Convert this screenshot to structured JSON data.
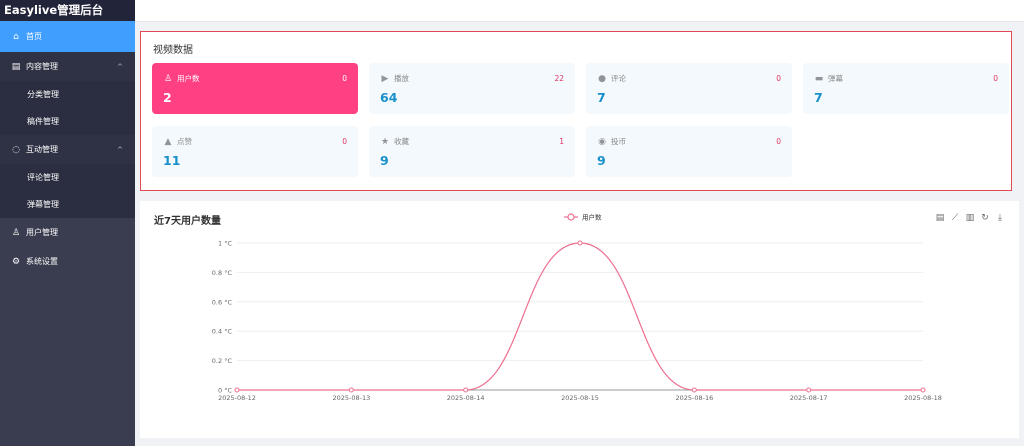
{
  "app": {
    "title": "Easylive管理后台"
  },
  "sidebar": {
    "items": [
      {
        "label": "首页",
        "icon": "home-icon",
        "active": true
      },
      {
        "label": "内容管理",
        "icon": "document-icon",
        "expanded": true,
        "children": [
          {
            "label": "分类管理"
          },
          {
            "label": "稿件管理"
          }
        ]
      },
      {
        "label": "互动管理",
        "icon": "chat-icon",
        "expanded": true,
        "children": [
          {
            "label": "评论管理"
          },
          {
            "label": "弹幕管理"
          }
        ]
      },
      {
        "label": "用户管理",
        "icon": "user-icon"
      },
      {
        "label": "系统设置",
        "icon": "gear-icon"
      }
    ]
  },
  "stats": {
    "title": "视频数据",
    "cards": [
      {
        "label": "用户数",
        "icon": "user-icon",
        "count": "0",
        "value": "2",
        "highlight": true
      },
      {
        "label": "播放",
        "icon": "play-icon",
        "count": "22",
        "value": "64"
      },
      {
        "label": "评论",
        "icon": "comment-icon",
        "count": "0",
        "value": "7"
      },
      {
        "label": "弹幕",
        "icon": "danmaku-icon",
        "count": "0",
        "value": "7"
      },
      {
        "label": "点赞",
        "icon": "thumbs-up-icon",
        "count": "0",
        "value": "11"
      },
      {
        "label": "收藏",
        "icon": "star-icon",
        "count": "1",
        "value": "9"
      },
      {
        "label": "投币",
        "icon": "coin-icon",
        "count": "0",
        "value": "9"
      }
    ]
  },
  "chart_data": {
    "type": "line",
    "title": "近7天用户数量",
    "x": [
      "2025-08-12",
      "2025-08-13",
      "2025-08-14",
      "2025-08-15",
      "2025-08-16",
      "2025-08-17",
      "2025-08-18"
    ],
    "yticks": [
      "0 °C",
      "0.2 °C",
      "0.4 °C",
      "0.6 °C",
      "0.8 °C",
      "1 °C"
    ],
    "ylim": [
      0,
      1
    ],
    "series": [
      {
        "name": "用户数",
        "values": [
          0,
          0,
          0,
          1,
          0,
          0,
          0
        ],
        "color": "#ee6f8f"
      }
    ],
    "smooth": true,
    "grid": true,
    "legend": "top-center"
  },
  "toolbox": [
    "data-view-icon",
    "line-chart-icon",
    "bar-chart-icon",
    "restore-icon",
    "download-icon"
  ]
}
